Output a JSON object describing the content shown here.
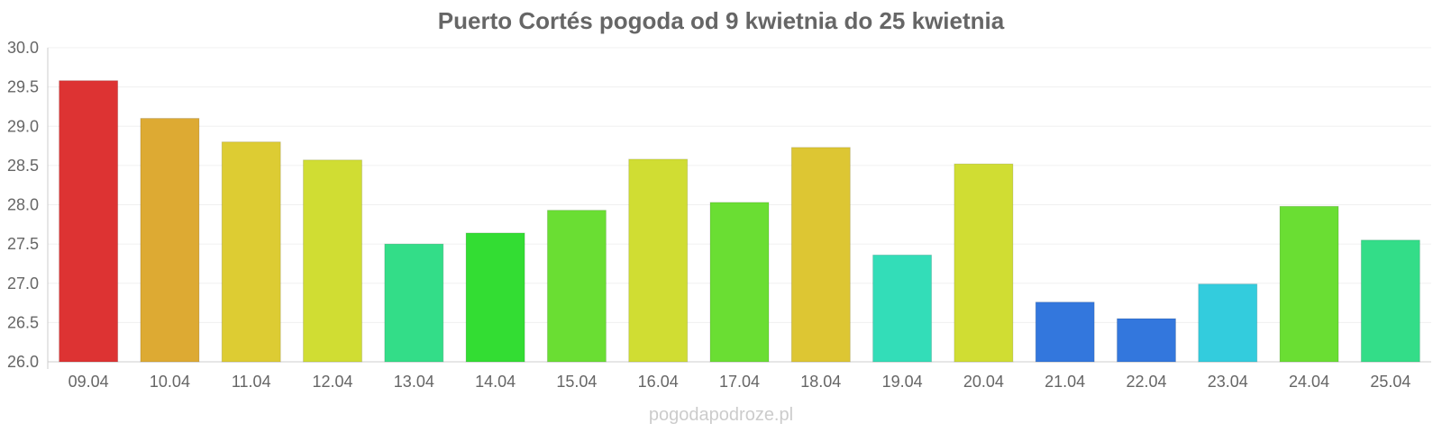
{
  "chart_data": {
    "type": "bar",
    "title": "Puerto Cortés pogoda od 9 kwietnia do 25 kwietnia",
    "xlabel": "",
    "ylabel": "",
    "ylim": [
      26.0,
      30.0
    ],
    "yticks": [
      "26.0",
      "26.5",
      "27.0",
      "27.5",
      "28.0",
      "28.5",
      "29.0",
      "29.5",
      "30.0"
    ],
    "grid": true,
    "legend": "none",
    "categories": [
      "09.04",
      "10.04",
      "11.04",
      "12.04",
      "13.04",
      "14.04",
      "15.04",
      "16.04",
      "17.04",
      "18.04",
      "19.04",
      "20.04",
      "21.04",
      "22.04",
      "23.04",
      "24.04",
      "25.04"
    ],
    "values": [
      29.58,
      29.1,
      28.8,
      28.57,
      27.5,
      27.64,
      27.93,
      28.58,
      28.03,
      28.73,
      27.36,
      28.52,
      26.76,
      26.55,
      26.99,
      27.98,
      27.55
    ],
    "colors": [
      "#dd3333",
      "#ddaa33",
      "#ddcc33",
      "#d0dd33",
      "#33dd88",
      "#33dd33",
      "#6ade33",
      "#d0dd33",
      "#6ade33",
      "#ddc633",
      "#33ddb8",
      "#d0dd33",
      "#3377dd",
      "#3377dd",
      "#33ccdd",
      "#6ade33",
      "#33dd88"
    ]
  },
  "watermark": "pogodapodroze.pl"
}
